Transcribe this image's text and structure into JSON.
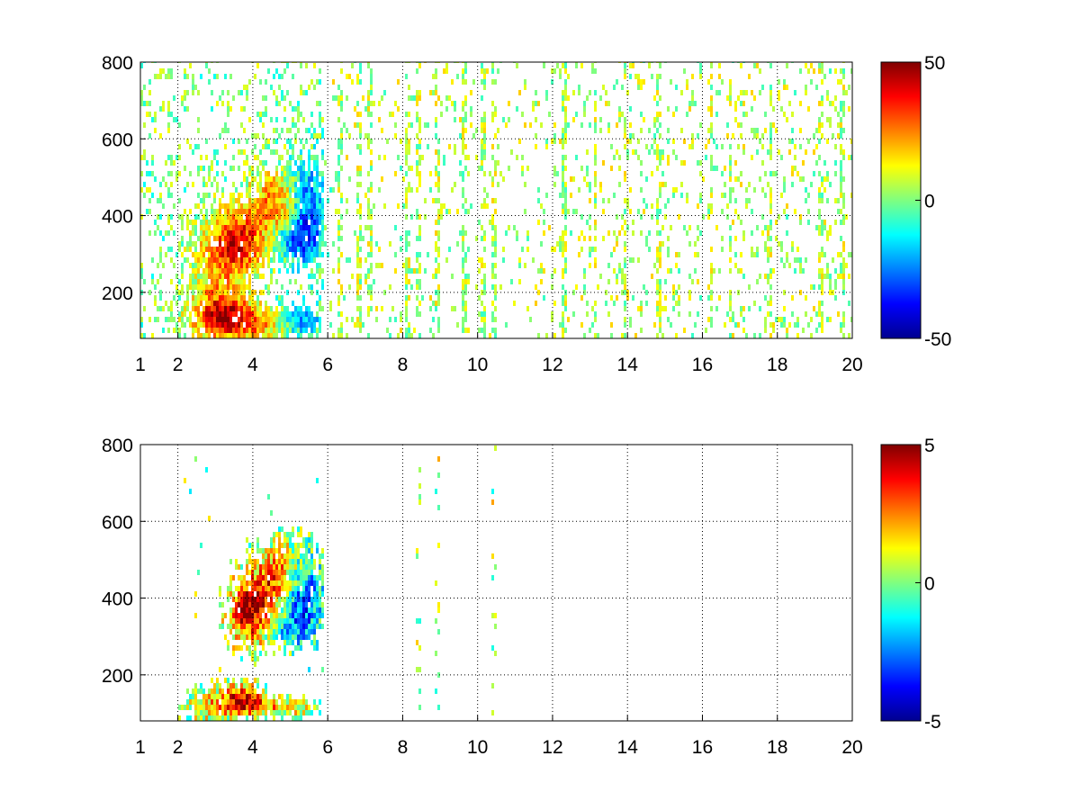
{
  "chart_data": [
    {
      "type": "heatmap",
      "title": "",
      "xlabel": "",
      "ylabel": "",
      "xlim": [
        1,
        20
      ],
      "ylim": [
        80,
        800
      ],
      "x_ticks": [
        "1",
        "2",
        "4",
        "6",
        "8",
        "10",
        "12",
        "14",
        "16",
        "18",
        "20"
      ],
      "y_ticks": [
        "200",
        "400",
        "600",
        "800"
      ],
      "grid": true,
      "grid_style": "dotted",
      "colormap": "jet",
      "colorbar": {
        "min": -50,
        "max": 50,
        "ticks": [
          "50",
          "0",
          "-50"
        ]
      },
      "blobs": [
        {
          "x": 3.6,
          "y": 320,
          "sx": 0.45,
          "sy": 55,
          "v": 35
        },
        {
          "x": 4.6,
          "y": 420,
          "sx": 0.55,
          "sy": 60,
          "v": 25
        },
        {
          "x": 5.4,
          "y": 400,
          "sx": 0.35,
          "sy": 90,
          "v": -35
        },
        {
          "x": 5.0,
          "y": 330,
          "sx": 0.4,
          "sy": 30,
          "v": -20
        },
        {
          "x": 3.2,
          "y": 130,
          "sx": 0.55,
          "sy": 40,
          "v": 38
        },
        {
          "x": 4.2,
          "y": 110,
          "sx": 0.6,
          "sy": 25,
          "v": 20
        },
        {
          "x": 5.2,
          "y": 120,
          "sx": 0.45,
          "sy": 25,
          "v": -25
        },
        {
          "x": 3.0,
          "y": 250,
          "sx": 0.5,
          "sy": 100,
          "v": 15
        }
      ],
      "dense_region": {
        "x0": 1.0,
        "x1": 5.9,
        "y0": 80,
        "y1": 800
      },
      "sparse_columns": [
        6.3,
        6.8,
        7.1,
        8.1,
        8.4,
        8.9,
        9.6,
        10.1,
        10.4,
        12.3,
        13.1,
        13.9,
        14.8,
        16.2,
        16.7,
        17.8,
        19.1,
        19.7
      ],
      "noise_density": 0.14
    },
    {
      "type": "heatmap",
      "title": "",
      "xlabel": "",
      "ylabel": "",
      "xlim": [
        1,
        20
      ],
      "ylim": [
        80,
        800
      ],
      "x_ticks": [
        "1",
        "2",
        "4",
        "6",
        "8",
        "10",
        "12",
        "14",
        "16",
        "18",
        "20"
      ],
      "y_ticks": [
        "200",
        "400",
        "600",
        "800"
      ],
      "grid": true,
      "grid_style": "dotted",
      "colormap": "jet",
      "colorbar": {
        "min": -5,
        "max": 5,
        "ticks": [
          "5",
          "0",
          "-5"
        ]
      },
      "blobs": [
        {
          "x": 3.9,
          "y": 360,
          "sx": 0.4,
          "sy": 60,
          "v": 4.5
        },
        {
          "x": 4.7,
          "y": 450,
          "sx": 0.45,
          "sy": 55,
          "v": 3
        },
        {
          "x": 5.3,
          "y": 400,
          "sx": 0.35,
          "sy": 70,
          "v": -3.5
        },
        {
          "x": 4.8,
          "y": 310,
          "sx": 0.5,
          "sy": 25,
          "v": -1.5
        },
        {
          "x": 3.7,
          "y": 130,
          "sx": 0.35,
          "sy": 25,
          "v": 4
        },
        {
          "x": 4.6,
          "y": 110,
          "sx": 0.7,
          "sy": 15,
          "v": 2
        },
        {
          "x": 2.9,
          "y": 110,
          "sx": 0.4,
          "sy": 30,
          "v": 1.5
        }
      ],
      "dense_region": {
        "x0": 2.0,
        "x1": 5.9,
        "y0": 80,
        "y1": 760
      },
      "sparse_columns": [
        8.4,
        8.9,
        10.4
      ],
      "noise_density": 0.35
    }
  ]
}
